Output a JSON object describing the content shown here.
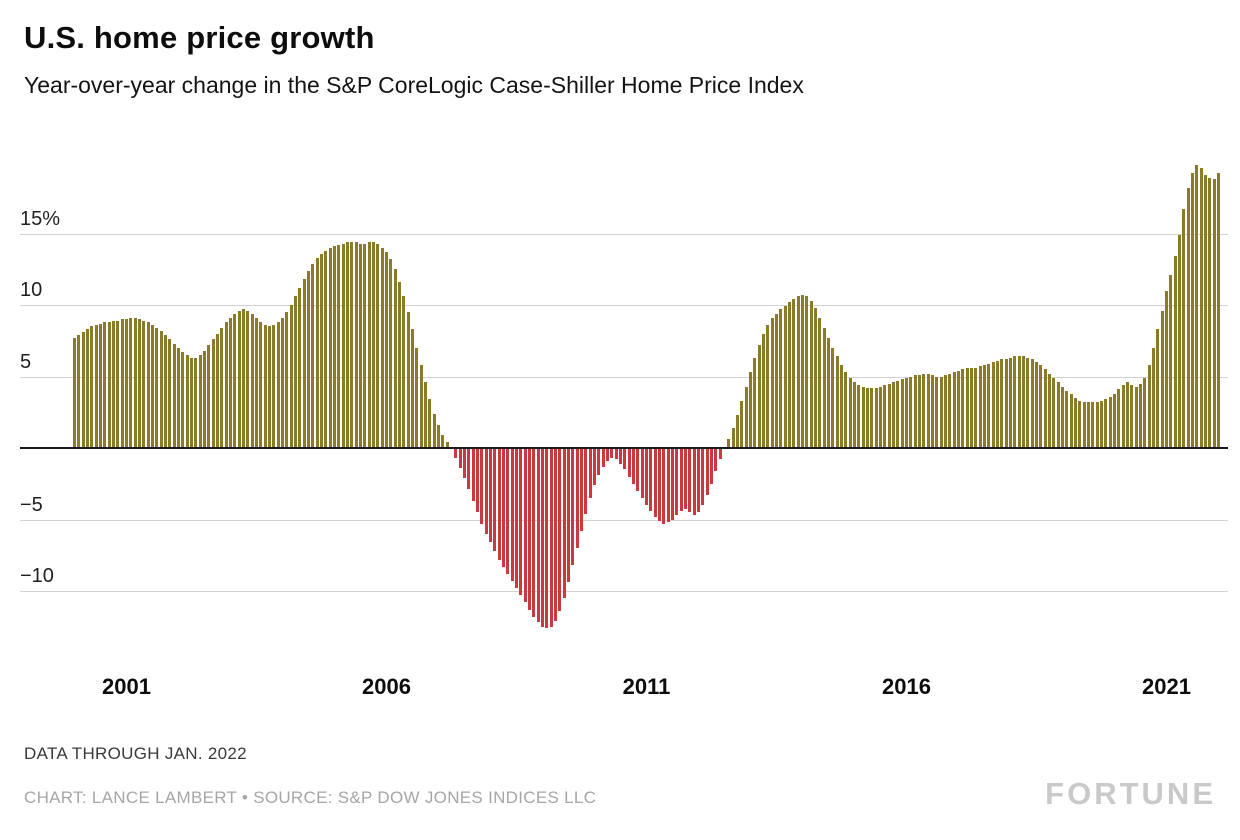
{
  "header": {
    "title": "U.S. home price growth",
    "subtitle": "Year-over-year change in the S&P CoreLogic Case-Shiller Home Price Index"
  },
  "footer": {
    "note": "DATA THROUGH JAN. 2022",
    "credit": "CHART: LANCE LAMBERT • SOURCE: S&P DOW JONES INDICES LLC",
    "brand": "FORTUNE"
  },
  "chart_data": {
    "type": "bar",
    "title": "U.S. home price growth",
    "subtitle": "Year-over-year change in the S&P CoreLogic Case-Shiller Home Price Index",
    "unit": "percent year-over-year",
    "frequency": "monthly",
    "start": "2000-01",
    "end": "2022-01",
    "grid": true,
    "ylim": [
      -14,
      21
    ],
    "y_ticks": [
      {
        "value": 15,
        "label": "15%"
      },
      {
        "value": 10,
        "label": "10"
      },
      {
        "value": 5,
        "label": "5"
      },
      {
        "value": 0,
        "label": ""
      },
      {
        "value": -5,
        "label": "−5"
      },
      {
        "value": -10,
        "label": "−10"
      }
    ],
    "x_ticks": [
      2001,
      2006,
      2011,
      2016,
      2021
    ],
    "positive_color": "#8a7b28",
    "negative_color": "#c9393f",
    "values": [
      7.7,
      7.9,
      8.1,
      8.3,
      8.5,
      8.6,
      8.7,
      8.8,
      8.8,
      8.9,
      8.9,
      9.0,
      9.0,
      9.1,
      9.1,
      9.0,
      8.9,
      8.8,
      8.6,
      8.4,
      8.2,
      7.9,
      7.6,
      7.3,
      7.0,
      6.7,
      6.5,
      6.3,
      6.3,
      6.5,
      6.8,
      7.2,
      7.6,
      8.0,
      8.4,
      8.8,
      9.1,
      9.4,
      9.6,
      9.7,
      9.6,
      9.4,
      9.1,
      8.8,
      8.6,
      8.5,
      8.6,
      8.8,
      9.1,
      9.5,
      10.0,
      10.6,
      11.2,
      11.8,
      12.4,
      12.9,
      13.3,
      13.6,
      13.8,
      14.0,
      14.1,
      14.2,
      14.3,
      14.4,
      14.4,
      14.4,
      14.3,
      14.3,
      14.4,
      14.4,
      14.3,
      14.0,
      13.7,
      13.2,
      12.5,
      11.6,
      10.6,
      9.5,
      8.3,
      7.0,
      5.8,
      4.6,
      3.4,
      2.4,
      1.6,
      0.9,
      0.4,
      -0.1,
      -0.7,
      -1.4,
      -2.1,
      -2.9,
      -3.7,
      -4.5,
      -5.3,
      -6.0,
      -6.6,
      -7.2,
      -7.8,
      -8.3,
      -8.8,
      -9.3,
      -9.8,
      -10.3,
      -10.8,
      -11.3,
      -11.8,
      -12.2,
      -12.5,
      -12.6,
      -12.5,
      -12.1,
      -11.4,
      -10.5,
      -9.4,
      -8.2,
      -7.0,
      -5.8,
      -4.6,
      -3.5,
      -2.6,
      -1.9,
      -1.3,
      -0.9,
      -0.7,
      -0.8,
      -1.1,
      -1.5,
      -2.0,
      -2.5,
      -3.0,
      -3.5,
      -4.0,
      -4.4,
      -4.8,
      -5.1,
      -5.3,
      -5.2,
      -5.0,
      -4.7,
      -4.4,
      -4.3,
      -4.5,
      -4.7,
      -4.5,
      -4.0,
      -3.3,
      -2.5,
      -1.6,
      -0.8,
      -0.1,
      0.6,
      1.4,
      2.3,
      3.3,
      4.3,
      5.3,
      6.3,
      7.2,
      8.0,
      8.6,
      9.1,
      9.4,
      9.7,
      9.9,
      10.2,
      10.4,
      10.6,
      10.7,
      10.6,
      10.3,
      9.8,
      9.1,
      8.4,
      7.7,
      7.0,
      6.4,
      5.8,
      5.3,
      4.9,
      4.6,
      4.4,
      4.3,
      4.2,
      4.2,
      4.2,
      4.3,
      4.4,
      4.5,
      4.6,
      4.7,
      4.8,
      4.9,
      5.0,
      5.1,
      5.1,
      5.2,
      5.2,
      5.1,
      5.0,
      5.0,
      5.1,
      5.2,
      5.3,
      5.4,
      5.5,
      5.6,
      5.6,
      5.6,
      5.7,
      5.8,
      5.9,
      6.0,
      6.1,
      6.2,
      6.2,
      6.3,
      6.4,
      6.4,
      6.4,
      6.3,
      6.2,
      6.0,
      5.8,
      5.5,
      5.2,
      4.9,
      4.6,
      4.3,
      4.0,
      3.8,
      3.5,
      3.3,
      3.2,
      3.2,
      3.2,
      3.2,
      3.3,
      3.4,
      3.6,
      3.8,
      4.1,
      4.4,
      4.6,
      4.4,
      4.3,
      4.5,
      4.9,
      5.8,
      7.0,
      8.3,
      9.6,
      11.0,
      12.1,
      13.4,
      14.9,
      16.7,
      18.2,
      19.2,
      19.8,
      19.6,
      19.1,
      18.9,
      18.8,
      19.2
    ]
  }
}
